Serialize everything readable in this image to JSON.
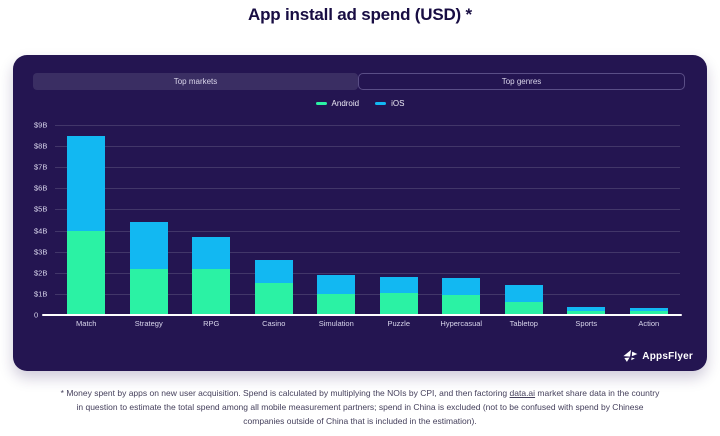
{
  "page": {
    "title": "App install ad spend (USD) *"
  },
  "panel": {
    "tabs": [
      {
        "label": "Top markets"
      },
      {
        "label": "Top genres"
      }
    ],
    "logo_text": "AppsFlyer"
  },
  "chart_data": {
    "type": "bar",
    "stacked": true,
    "title": "App install ad spend (USD) *",
    "categories": [
      "Match",
      "Strategy",
      "RPG",
      "Casino",
      "Simulation",
      "Puzzle",
      "Hypercasual",
      "Tabletop",
      "Sports",
      "Action"
    ],
    "series": [
      {
        "name": "Android",
        "color": "#2bf2a4",
        "values": [
          4.0,
          2.2,
          2.2,
          1.5,
          1.0,
          1.05,
          0.95,
          0.6,
          0.2,
          0.18
        ]
      },
      {
        "name": "iOS",
        "color": "#12b8f2",
        "values": [
          4.5,
          2.2,
          1.5,
          1.1,
          0.9,
          0.75,
          0.8,
          0.8,
          0.2,
          0.15
        ]
      }
    ],
    "unit": "USD billions",
    "ylim": [
      0,
      9
    ],
    "yticks": [
      "$9B",
      "$8B",
      "$7B",
      "$6B",
      "$5B",
      "$4B",
      "$3B",
      "$2B",
      "$1B",
      "0"
    ],
    "grid": true,
    "legend_position": "top-center"
  },
  "footnote": {
    "prefix": "* Money spent by apps on new user acquisition. Spend is calculated by multiplying the NOIs by CPI, and then factoring ",
    "link_text": "data.ai",
    "suffix": " market share data in the country in question to estimate the total spend among all mobile measurement partners; spend in China is excluded (not to be confused with spend by Chinese companies outside of China that is included in the estimation)."
  },
  "colors": {
    "panel_bg": "#241551",
    "android": "#2bf2a4",
    "ios": "#12b8f2",
    "tab_filled_bg": "#3a2e63",
    "title_text": "#180d43"
  }
}
